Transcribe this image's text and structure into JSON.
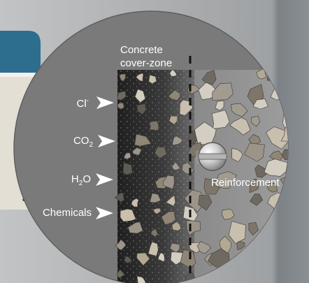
{
  "diagram": {
    "zone_label_line1": "Concrete",
    "zone_label_line2": "cover-zone",
    "agents": [
      {
        "base": "Cl",
        "sup": "-",
        "sub": ""
      },
      {
        "base": "CO",
        "sup": "",
        "sub": "2"
      },
      {
        "base": "H",
        "sup": "",
        "sub": "2",
        "tail": "O"
      },
      {
        "base": "Chemicals",
        "sup": "",
        "sub": ""
      }
    ],
    "reinforcement_label": "Reinforcement",
    "side_text_fragment": "a",
    "colors": {
      "background_left": "#b9bbbc",
      "background_right": "#8e9295",
      "circle_fill": "#7a7a7a",
      "cover_zone_dark": "#2b2b2b",
      "core_concrete": "#8d8d8d",
      "tab_blue": "#2d6e8e",
      "panel_beige": "#e3dfd5",
      "arrow": "#ffffff"
    }
  }
}
